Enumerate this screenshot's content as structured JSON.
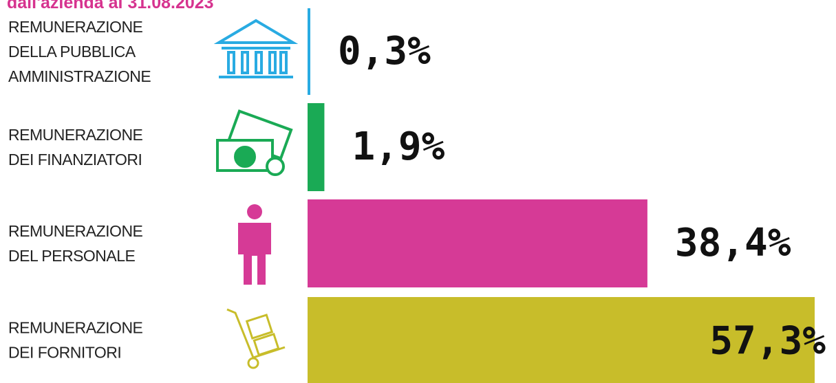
{
  "chart_data": {
    "type": "bar",
    "title": "dall'azienda al 31.08.2023",
    "categories": [
      [
        "REMUNERAZIONE",
        "DELLA PUBBLICA",
        "AMMINISTRAZIONE"
      ],
      [
        "REMUNERAZIONE",
        "DEI FINANZIATORI"
      ],
      [
        "REMUNERAZIONE",
        "DEL PERSONALE"
      ],
      [
        "REMUNERAZIONE",
        "DEI FORNITORI"
      ]
    ],
    "values": [
      0.3,
      1.9,
      38.4,
      57.3
    ],
    "value_labels": [
      "0,3%",
      "1,9%",
      "38,4%",
      "57,3%"
    ],
    "colors": [
      "#29abe2",
      "#1aaa55",
      "#d63a96",
      "#c8bd2a"
    ]
  }
}
